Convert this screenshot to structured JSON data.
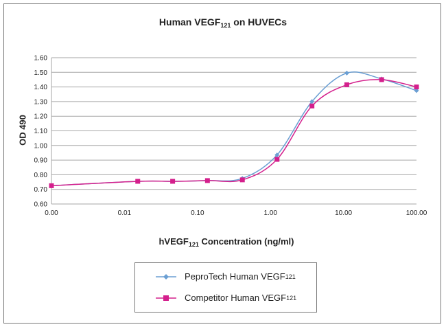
{
  "chart_data": {
    "type": "line",
    "title": {
      "main": "Human VEGF",
      "sub": "121",
      "rest": " on HUVECs"
    },
    "xlabel": {
      "main": "hVEGF",
      "sub": "121",
      "rest": " Concentration (ng/ml)"
    },
    "ylabel": "OD 490",
    "x_scale": "log",
    "xlim": [
      0.001,
      100
    ],
    "x_ticks": [
      0.001,
      0.01,
      0.1,
      1,
      10,
      100
    ],
    "x_tick_labels": [
      "0.00",
      "0.01",
      "0.10",
      "1.00",
      "10.00",
      "100.00"
    ],
    "ylim": [
      0.6,
      1.6
    ],
    "y_ticks": [
      0.6,
      0.7,
      0.8,
      0.9,
      1.0,
      1.1,
      1.2,
      1.3,
      1.4,
      1.5,
      1.6
    ],
    "y_tick_labels": [
      "0.60",
      "0.70",
      "0.80",
      "0.90",
      "1.00",
      "1.10",
      "1.20",
      "1.30",
      "1.40",
      "1.50",
      "1.60"
    ],
    "grid": "horizontal",
    "legend_position": "bottom",
    "x": [
      0.001,
      0.0152,
      0.0457,
      0.137,
      0.412,
      1.23,
      3.7,
      11.1,
      33.3,
      100
    ],
    "series": [
      {
        "name": "PeproTech Human VEGF",
        "name_sub": "121",
        "color": "#6b9fd3",
        "marker": "diamond",
        "values": [
          0.725,
          0.755,
          0.755,
          0.76,
          0.775,
          0.935,
          1.3,
          1.495,
          1.455,
          1.375
        ]
      },
      {
        "name": "Competitor Human VEGF",
        "name_sub": "121",
        "color": "#d41f8c",
        "marker": "square",
        "values": [
          0.725,
          0.755,
          0.755,
          0.76,
          0.765,
          0.905,
          1.27,
          1.415,
          1.45,
          1.4
        ]
      }
    ]
  }
}
